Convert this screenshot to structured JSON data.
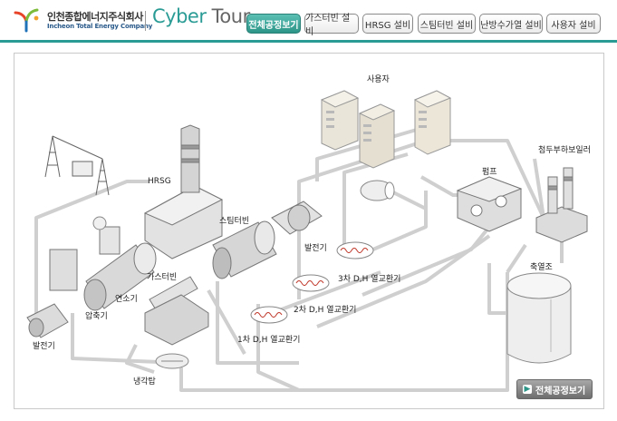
{
  "header": {
    "company_ko": "인천종합에너지주식회사",
    "company_en": "Incheon Total Energy Company",
    "brand_cyber": "Cyber",
    "brand_tour": "Tour",
    "accent_color": "#2b9c95"
  },
  "tabs": [
    {
      "label": "전체공정보기",
      "active": true
    },
    {
      "label": "가스터빈 설비",
      "active": false
    },
    {
      "label": "HRSG 설비",
      "active": false
    },
    {
      "label": "스팀터빈 설비",
      "active": false
    },
    {
      "label": "난방수가열 설비",
      "active": false
    },
    {
      "label": "사용자 설비",
      "active": false
    }
  ],
  "diagram": {
    "labels": {
      "user": "사용자",
      "peak_boiler": "첨두부하보일러",
      "pump": "펌프",
      "hrsg": "HRSG",
      "steam_turbine": "스팀터빈",
      "generator_top": "발전기",
      "hx3": "3차 D,H 열교환기",
      "hx2": "2차 D,H 열교환기",
      "hx1": "1차 D,H 열교환기",
      "gas_turbine": "가스터빈",
      "combustor": "연소기",
      "compressor": "압축기",
      "generator_bottom": "발전기",
      "storage_tank": "축열조",
      "cooling_tower": "냉각탑"
    }
  },
  "footer": {
    "overview_button": "전체공정보기"
  }
}
